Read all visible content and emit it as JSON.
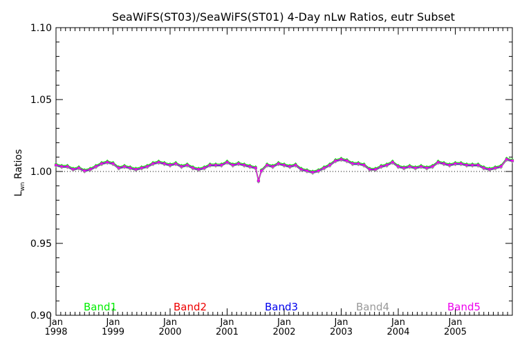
{
  "chart_data": {
    "type": "line",
    "title": "SeaWiFS(ST03)/SeaWiFS(ST01) 4-Day nLw Ratios, eutr Subset",
    "ylabel_main": "L",
    "ylabel_sub": "wn",
    "ylabel_rest": " Ratios",
    "xlabel": "",
    "ylim": [
      0.9,
      1.1
    ],
    "xlim": [
      1998.0,
      2006.0
    ],
    "y_ticks": [
      "0.90",
      "0.95",
      "1.00",
      "1.05",
      "1.10"
    ],
    "x_ticks": [
      {
        "month": "Jan",
        "year": "1998"
      },
      {
        "month": "Jan",
        "year": "1999"
      },
      {
        "month": "Jan",
        "year": "2000"
      },
      {
        "month": "Jan",
        "year": "2001"
      },
      {
        "month": "Jan",
        "year": "2002"
      },
      {
        "month": "Jan",
        "year": "2003"
      },
      {
        "month": "Jan",
        "year": "2004"
      },
      {
        "month": "Jan",
        "year": "2005"
      }
    ],
    "reference_line": 1.0,
    "base": {
      "x": [
        1998.0,
        1998.1,
        1998.2,
        1998.3,
        1998.4,
        1998.5,
        1998.6,
        1998.7,
        1998.8,
        1998.9,
        1999.0,
        1999.1,
        1999.2,
        1999.3,
        1999.4,
        1999.5,
        1999.6,
        1999.7,
        1999.8,
        1999.9,
        2000.0,
        2000.1,
        2000.2,
        2000.3,
        2000.4,
        2000.5,
        2000.6,
        2000.7,
        2000.8,
        2000.9,
        2001.0,
        2001.1,
        2001.2,
        2001.3,
        2001.4,
        2001.5,
        2001.55,
        2001.6,
        2001.7,
        2001.8,
        2001.9,
        2002.0,
        2002.1,
        2002.2,
        2002.3,
        2002.4,
        2002.5,
        2002.6,
        2002.7,
        2002.8,
        2002.9,
        2003.0,
        2003.1,
        2003.2,
        2003.3,
        2003.4,
        2003.5,
        2003.6,
        2003.7,
        2003.8,
        2003.9,
        2004.0,
        2004.1,
        2004.2,
        2004.3,
        2004.4,
        2004.5,
        2004.6,
        2004.7,
        2004.8,
        2004.9,
        2005.0,
        2005.1,
        2005.2,
        2005.3,
        2005.4,
        2005.5,
        2005.6,
        2005.7,
        2005.8,
        2005.9,
        2006.0
      ],
      "y": [
        1.004,
        1.003,
        1.003,
        1.001,
        1.002,
        1.0,
        1.001,
        1.003,
        1.005,
        1.006,
        1.005,
        1.002,
        1.003,
        1.002,
        1.001,
        1.002,
        1.003,
        1.005,
        1.006,
        1.005,
        1.004,
        1.005,
        1.003,
        1.004,
        1.002,
        1.001,
        1.002,
        1.004,
        1.004,
        1.004,
        1.006,
        1.004,
        1.005,
        1.004,
        1.003,
        1.002,
        0.993,
        1.0,
        1.004,
        1.003,
        1.005,
        1.004,
        1.003,
        1.004,
        1.001,
        1.0,
        0.999,
        1.0,
        1.002,
        1.004,
        1.007,
        1.008,
        1.007,
        1.005,
        1.005,
        1.004,
        1.001,
        1.001,
        1.003,
        1.004,
        1.006,
        1.003,
        1.002,
        1.003,
        1.002,
        1.003,
        1.002,
        1.003,
        1.006,
        1.005,
        1.004,
        1.005,
        1.005,
        1.004,
        1.004,
        1.004,
        1.002,
        1.001,
        1.002,
        1.003,
        1.008,
        1.007
      ]
    },
    "series": [
      {
        "name": "Band1",
        "color": "#00ee00",
        "offset": 0.0012
      },
      {
        "name": "Band2",
        "color": "#ee0000",
        "offset": 0.0004
      },
      {
        "name": "Band3",
        "color": "#0000ee",
        "offset": 0.0
      },
      {
        "name": "Band4",
        "color": "#999999",
        "offset": -0.0003
      },
      {
        "name": "Band5",
        "color": "#ee00ee",
        "offset": 0.0006
      }
    ]
  }
}
